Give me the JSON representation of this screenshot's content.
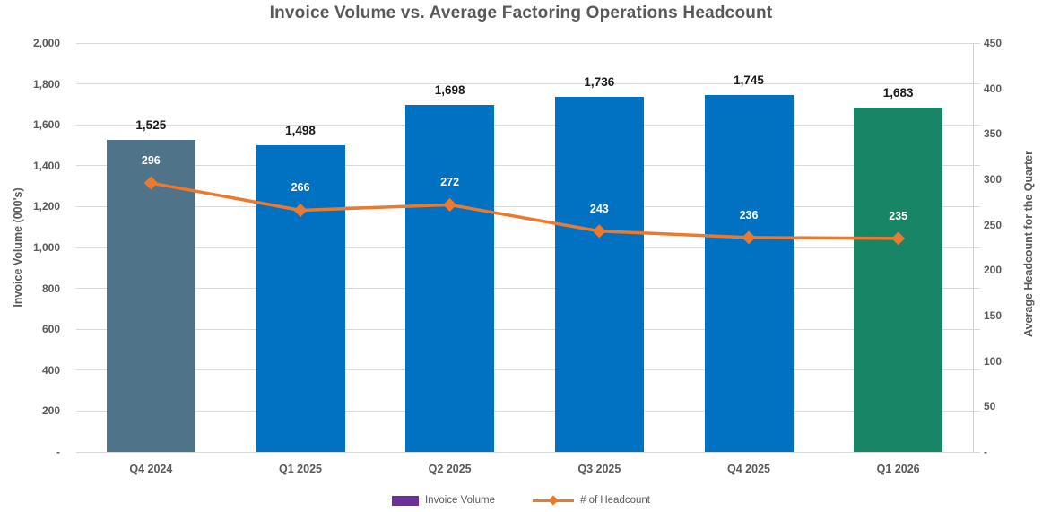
{
  "chart_data": {
    "type": "combo",
    "title": "Invoice Volume vs. Average Factoring Operations Headcount",
    "categories": [
      "Q4 2024",
      "Q1 2025",
      "Q2 2025",
      "Q3 2025",
      "Q4 2025",
      "Q1 2026"
    ],
    "series": [
      {
        "name": "Invoice Volume",
        "type": "bar",
        "axis": "left",
        "values": [
          1525,
          1498,
          1698,
          1736,
          1745,
          1683
        ],
        "labels": [
          "1,525",
          "1,498",
          "1,698",
          "1,736",
          "1,745",
          "1,683"
        ],
        "bar_colors": [
          "#4F7389",
          "#0171C1",
          "#0171C1",
          "#0171C1",
          "#0171C1",
          "#178566"
        ]
      },
      {
        "name": "# of Headcount",
        "type": "line",
        "axis": "right",
        "values": [
          296,
          266,
          272,
          243,
          236,
          235
        ],
        "labels": [
          "296",
          "266",
          "272",
          "243",
          "236",
          "235"
        ],
        "color": "#EB7A2F"
      }
    ],
    "left_axis": {
      "title": "Invoice Volume (000's)",
      "min": 0,
      "max": 2000,
      "step": 200,
      "tick_labels": [
        "2,000",
        "1,800",
        "1,600",
        "1,400",
        "1,200",
        "1,000",
        "800",
        "600",
        "400",
        "200",
        "-"
      ]
    },
    "right_axis": {
      "title": "Average Headcount for the Quarter",
      "min": 0,
      "max": 450,
      "step": 50,
      "tick_labels": [
        "450",
        "400",
        "350",
        "300",
        "250",
        "200",
        "150",
        "100",
        "50",
        "-"
      ]
    },
    "legend": [
      {
        "label": "Invoice Volume",
        "swatch_color": "#6C3199",
        "marker": "bar"
      },
      {
        "label": "# of Headcount",
        "swatch_color": "#EB7A2F",
        "marker": "line-diamond"
      }
    ],
    "grid": true,
    "gridline_color": "#d9d9d9",
    "legend_position": "bottom"
  }
}
